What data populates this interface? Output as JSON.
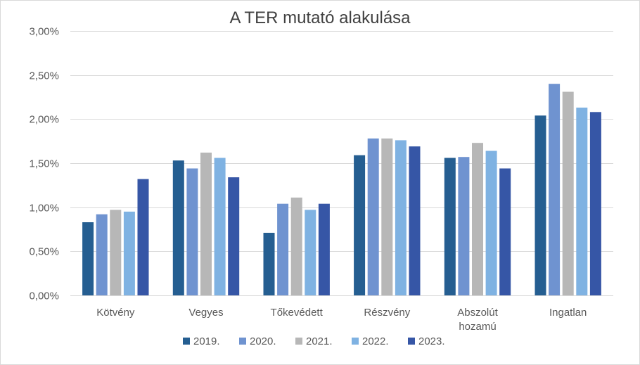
{
  "chart_data": {
    "type": "bar",
    "title": "A TER mutató alakulása",
    "xlabel": "",
    "ylabel": "",
    "ylim": [
      0,
      0.03
    ],
    "yticks": [
      "0,00%",
      "0,50%",
      "1,00%",
      "1,50%",
      "2,00%",
      "2,50%",
      "3,00%"
    ],
    "ytick_values": [
      0,
      0.005,
      0.01,
      0.015,
      0.02,
      0.025,
      0.03
    ],
    "grid": true,
    "legend_position": "bottom",
    "categories": [
      [
        "Kötvény"
      ],
      [
        "Vegyes"
      ],
      [
        "Tőkevédett"
      ],
      [
        "Részvény"
      ],
      [
        "Abszolút",
        "hozamú"
      ],
      [
        "Ingatlan"
      ]
    ],
    "series": [
      {
        "name": "2019.",
        "color": "#255E91",
        "values": [
          0.0083,
          0.0153,
          0.0071,
          0.0159,
          0.0156,
          0.0204
        ]
      },
      {
        "name": "2020.",
        "color": "#6F93D0",
        "values": [
          0.0092,
          0.0144,
          0.0104,
          0.0178,
          0.0157,
          0.024
        ]
      },
      {
        "name": "2021.",
        "color": "#B7B7B7",
        "values": [
          0.0097,
          0.0162,
          0.0111,
          0.0178,
          0.0173,
          0.0231
        ]
      },
      {
        "name": "2022.",
        "color": "#7FB2E2",
        "values": [
          0.0095,
          0.0156,
          0.0097,
          0.0176,
          0.0164,
          0.0213
        ]
      },
      {
        "name": "2023.",
        "color": "#3656A6",
        "values": [
          0.0132,
          0.0134,
          0.0104,
          0.0169,
          0.0144,
          0.0208
        ]
      }
    ]
  }
}
